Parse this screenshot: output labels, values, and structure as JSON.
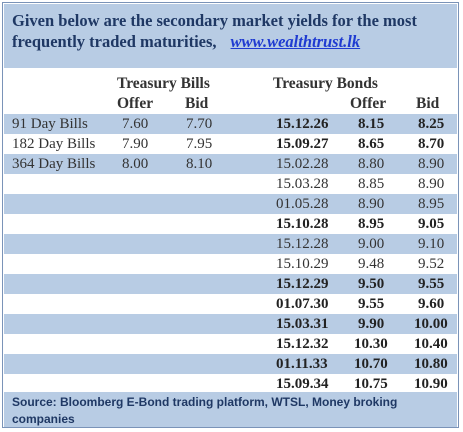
{
  "header": {
    "line1": "Given below are the secondary market yields for the most",
    "line2": "frequently traded maturities,",
    "link": "www.wealthtrust.lk"
  },
  "tbills": {
    "title": "Treasury Bills",
    "col_offer": "Offer",
    "col_bid": "Bid",
    "rows": [
      {
        "label": "91 Day Bills",
        "offer": "7.60",
        "bid": "7.70"
      },
      {
        "label": "182 Day Bills",
        "offer": "7.90",
        "bid": "7.95"
      },
      {
        "label": "364 Day Bills",
        "offer": "8.00",
        "bid": "8.10"
      }
    ]
  },
  "tbonds": {
    "title": "Treasury Bonds",
    "col_offer": "Offer",
    "col_bid": "Bid",
    "rows": [
      {
        "maturity": "15.12.26",
        "offer": "8.15",
        "bid": "8.25",
        "bold": true
      },
      {
        "maturity": "15.09.27",
        "offer": "8.65",
        "bid": "8.70",
        "bold": true
      },
      {
        "maturity": "15.02.28",
        "offer": "8.80",
        "bid": "8.90",
        "bold": false
      },
      {
        "maturity": "15.03.28",
        "offer": "8.85",
        "bid": "8.90",
        "bold": false
      },
      {
        "maturity": "01.05.28",
        "offer": "8.90",
        "bid": "8.95",
        "bold": false
      },
      {
        "maturity": "15.10.28",
        "offer": "8.95",
        "bid": "9.05",
        "bold": true
      },
      {
        "maturity": "15.12.28",
        "offer": "9.00",
        "bid": "9.10",
        "bold": false
      },
      {
        "maturity": "15.10.29",
        "offer": "9.48",
        "bid": "9.52",
        "bold": false
      },
      {
        "maturity": "15.12.29",
        "offer": "9.50",
        "bid": "9.55",
        "bold": true
      },
      {
        "maturity": "01.07.30",
        "offer": "9.55",
        "bid": "9.60",
        "bold": true
      },
      {
        "maturity": "15.03.31",
        "offer": "9.90",
        "bid": "10.00",
        "bold": true
      },
      {
        "maturity": "15.12.32",
        "offer": "10.30",
        "bid": "10.40",
        "bold": true
      },
      {
        "maturity": "01.11.33",
        "offer": "10.70",
        "bid": "10.80",
        "bold": true
      },
      {
        "maturity": "15.09.34",
        "offer": "10.75",
        "bid": "10.90",
        "bold": true
      }
    ]
  },
  "footer": {
    "text": "Source: Bloomberg E-Bond trading platform, WTSL, Money broking companies"
  },
  "colors": {
    "band": "#b8cce4",
    "heading_text": "#1f3864",
    "link": "#1f3bd1"
  }
}
